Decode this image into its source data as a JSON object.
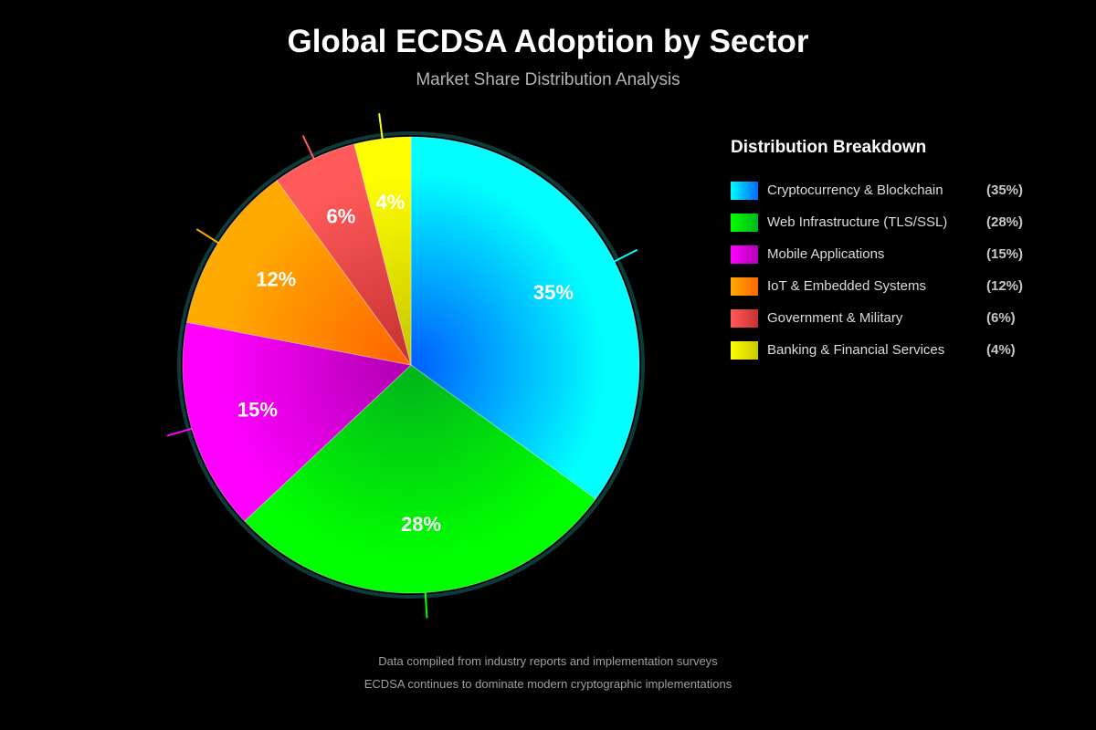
{
  "chart_data": {
    "type": "pie",
    "title": "Global ECDSA Adoption by Sector",
    "subtitle": "Market Share Distribution Analysis",
    "legend_title": "Distribution Breakdown",
    "legend_position": "right",
    "slices": [
      {
        "label": "Cryptocurrency & Blockchain",
        "value": 35,
        "pct_text": "35%",
        "legend_value": "(35%)",
        "color": "#00ffff",
        "color_dark": "#0066ff"
      },
      {
        "label": "Web Infrastructure (TLS/SSL)",
        "value": 28,
        "pct_text": "28%",
        "legend_value": "(28%)",
        "color": "#00ff00",
        "color_dark": "#00b81a"
      },
      {
        "label": "Mobile Applications",
        "value": 15,
        "pct_text": "15%",
        "legend_value": "(15%)",
        "color": "#ff00ff",
        "color_dark": "#b400b4"
      },
      {
        "label": "IoT & Embedded Systems",
        "value": 12,
        "pct_text": "12%",
        "legend_value": "(12%)",
        "color": "#ffaa00",
        "color_dark": "#ff6600"
      },
      {
        "label": "Government & Military",
        "value": 6,
        "pct_text": "6%",
        "legend_value": "(6%)",
        "color": "#ff5a5a",
        "color_dark": "#c83232"
      },
      {
        "label": "Banking & Financial Services",
        "value": 4,
        "pct_text": "4%",
        "legend_value": "(4%)",
        "color": "#ffff00",
        "color_dark": "#c8c800"
      }
    ]
  },
  "footer": {
    "line1": "Data compiled from industry reports and implementation surveys",
    "line2": "ECDSA continues to dominate modern cryptographic implementations"
  }
}
